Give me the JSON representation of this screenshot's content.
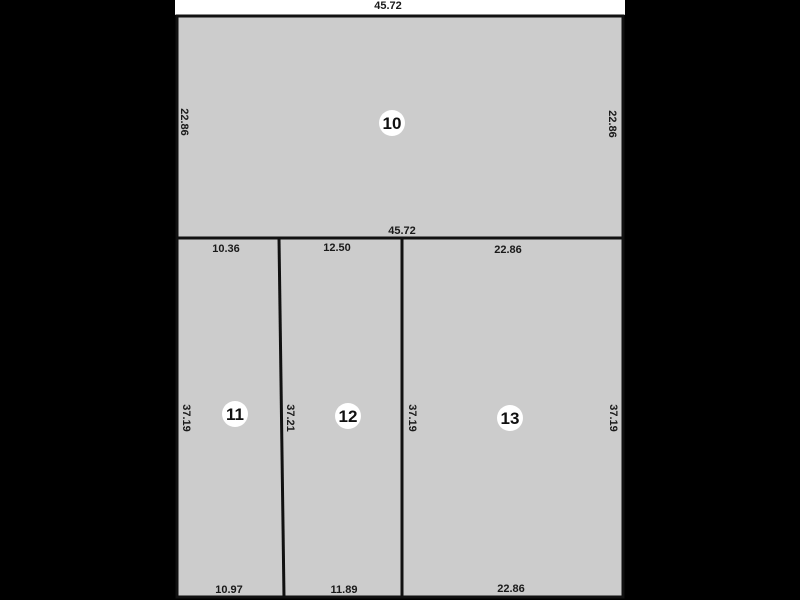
{
  "colors": {
    "background": "#000000",
    "lot_fill": "#cccccc",
    "boundary": "#111111",
    "label_badge": "#ffffff",
    "top_strip": "#ffffff"
  },
  "frontage": "45.72",
  "lots": [
    {
      "number": "10",
      "top": "45.72",
      "bottom": "45.72",
      "left": "22.86",
      "right": "22.86"
    },
    {
      "number": "11",
      "top": "10.36",
      "bottom": "10.97",
      "left": "37.19",
      "right": "37.21"
    },
    {
      "number": "12",
      "top": "12.50",
      "bottom": "11.89",
      "left": "37.21",
      "right": "37.19"
    },
    {
      "number": "13",
      "top": "22.86",
      "bottom": "22.86",
      "left": "37.19",
      "right": "37.19"
    }
  ]
}
